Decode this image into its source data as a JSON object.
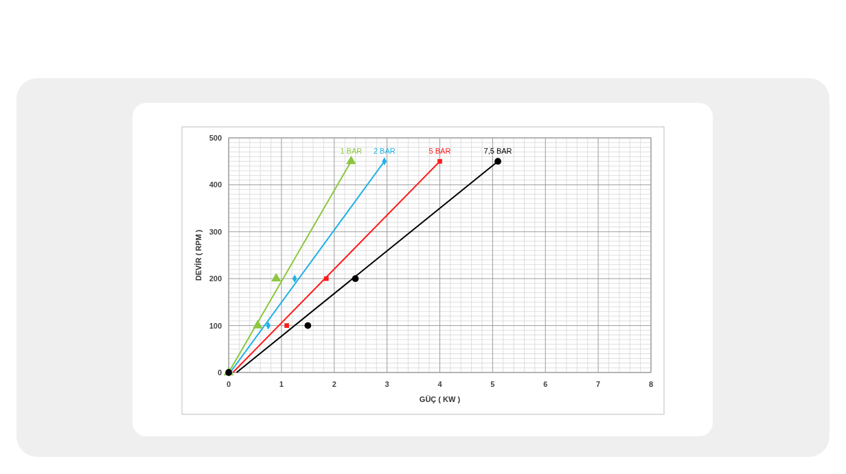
{
  "chart_data": {
    "type": "scatter",
    "xlabel": "GÜÇ ( KW )",
    "ylabel": "DEVİR ( RPM )",
    "xlim": [
      0,
      8
    ],
    "xticks": [
      0,
      1,
      2,
      3,
      4,
      5,
      6,
      7,
      8
    ],
    "ylim": [
      0,
      500
    ],
    "yticks": [
      0,
      100,
      200,
      300,
      400,
      500
    ],
    "grid": true,
    "series": [
      {
        "name": "1 BAR",
        "color": "#8cc63f",
        "marker": "triangle",
        "x": [
          0,
          0.55,
          0.9,
          2.32
        ],
        "values": [
          0,
          100,
          200,
          450
        ]
      },
      {
        "name": "2 BAR",
        "color": "#1fb1e6",
        "marker": "diamond",
        "x": [
          0,
          0.75,
          1.25,
          2.95
        ],
        "values": [
          0,
          100,
          200,
          450
        ]
      },
      {
        "name": "5 BAR",
        "color": "#ff1a1a",
        "marker": "square",
        "x": [
          0,
          1.1,
          1.85,
          4.0
        ],
        "values": [
          0,
          100,
          200,
          450
        ]
      },
      {
        "name": "7,5 BAR",
        "color": "#000000",
        "marker": "circle",
        "x": [
          0,
          1.5,
          2.4,
          5.1
        ],
        "values": [
          0,
          100,
          200,
          450
        ]
      },
      {
        "type": "line",
        "color": "#8cc63f",
        "marker": "none",
        "x": [
          0,
          2.32
        ],
        "values": [
          0,
          450
        ]
      },
      {
        "type": "line",
        "color": "#1fb1e6",
        "marker": "none",
        "x": [
          0.03,
          2.95
        ],
        "values": [
          0,
          450
        ]
      },
      {
        "type": "line",
        "color": "#ff1a1a",
        "marker": "none",
        "x": [
          0.08,
          4.0
        ],
        "values": [
          0,
          450
        ]
      },
      {
        "type": "line",
        "color": "#000000",
        "marker": "none",
        "x": [
          0.15,
          5.1
        ],
        "values": [
          0,
          450
        ]
      }
    ]
  }
}
